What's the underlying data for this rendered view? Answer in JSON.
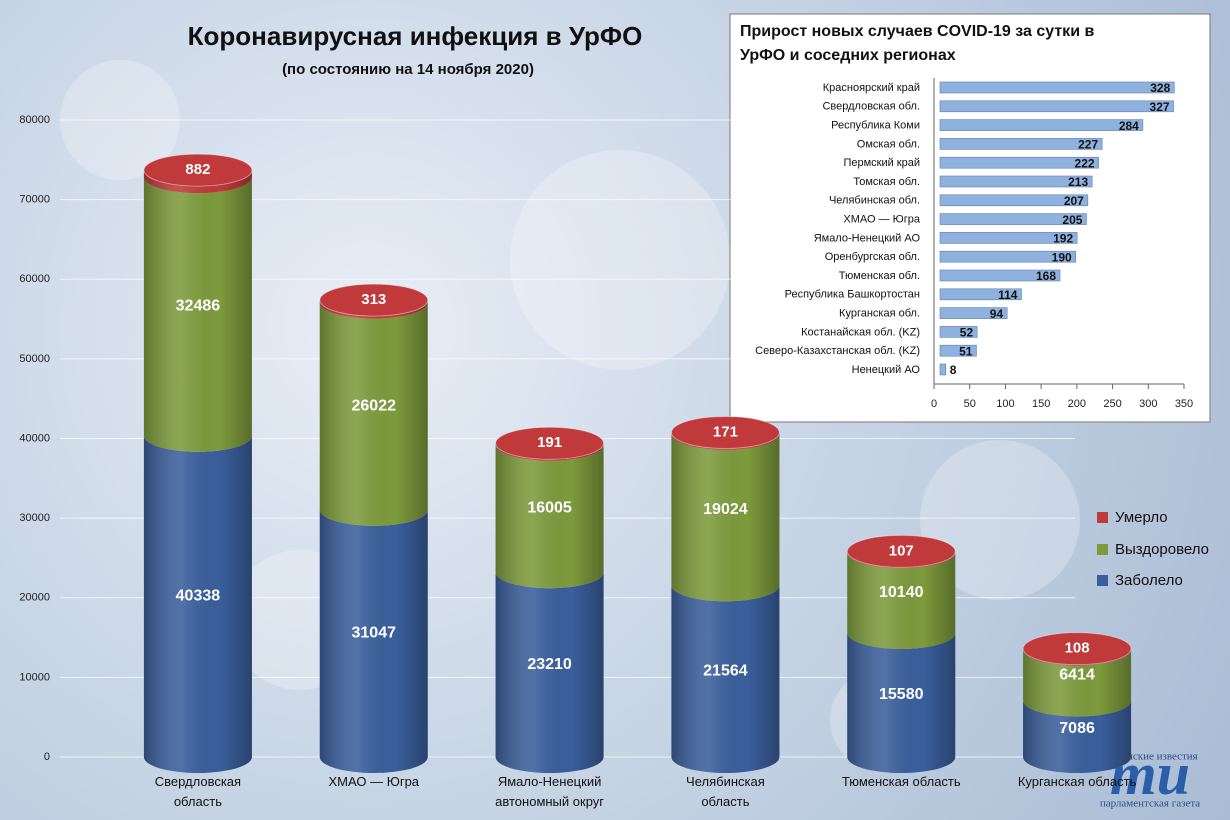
{
  "chart_data": [
    {
      "type": "stacked-cylinder",
      "title": "Коронавирусная инфекция в УрФО",
      "subtitle": "(по состоянию на 14 ноября 2020)",
      "categories": [
        "Свердловская область",
        "ХМАО — Югра",
        "Ямало-Ненецкий автономный округ",
        "Челябинская область",
        "Тюменская область",
        "Курганская область"
      ],
      "series": [
        {
          "name": "Заболело",
          "color": "#3a5f9c",
          "values": [
            40338,
            31047,
            23210,
            21564,
            15580,
            7086
          ]
        },
        {
          "name": "Выздоровело",
          "color": "#7d9b3c",
          "values": [
            32486,
            26022,
            16005,
            19024,
            10140,
            6414
          ]
        },
        {
          "name": "Умерло",
          "color": "#c0393b",
          "values": [
            882,
            313,
            191,
            171,
            107,
            108
          ]
        }
      ],
      "ylim": [
        0,
        80000
      ],
      "yticks": [
        0,
        10000,
        20000,
        30000,
        40000,
        50000,
        60000,
        70000,
        80000
      ],
      "grid": true,
      "legend": "right"
    },
    {
      "type": "horizontal-bar",
      "title": "Прирост новых случаев COVID-19 за сутки в УрФО и соседних регионах",
      "categories": [
        "Красноярский край",
        "Свердловская обл.",
        "Республика Коми",
        "Омская обл.",
        "Пермский край",
        "Томская обл.",
        "Челябинская обл.",
        "ХМАО — Югра",
        "Ямало-Ненецкий АО",
        "Оренбургская обл.",
        "Тюменская обл.",
        "Республика Башкортостан",
        "Курганская обл.",
        "Костанайская обл. (KZ)",
        "Северо-Казахстанская обл. (KZ)",
        "Ненецкий АО"
      ],
      "values": [
        328,
        327,
        284,
        227,
        222,
        213,
        207,
        205,
        192,
        190,
        168,
        114,
        94,
        52,
        51,
        8
      ],
      "color": "#8fb1de",
      "xlim": [
        0,
        350
      ],
      "xticks": [
        0,
        50,
        100,
        150,
        200,
        250,
        300,
        350
      ]
    }
  ],
  "logo": {
    "top": "тюменские известия",
    "mark": "ти",
    "bottom": "парламентская газета"
  }
}
